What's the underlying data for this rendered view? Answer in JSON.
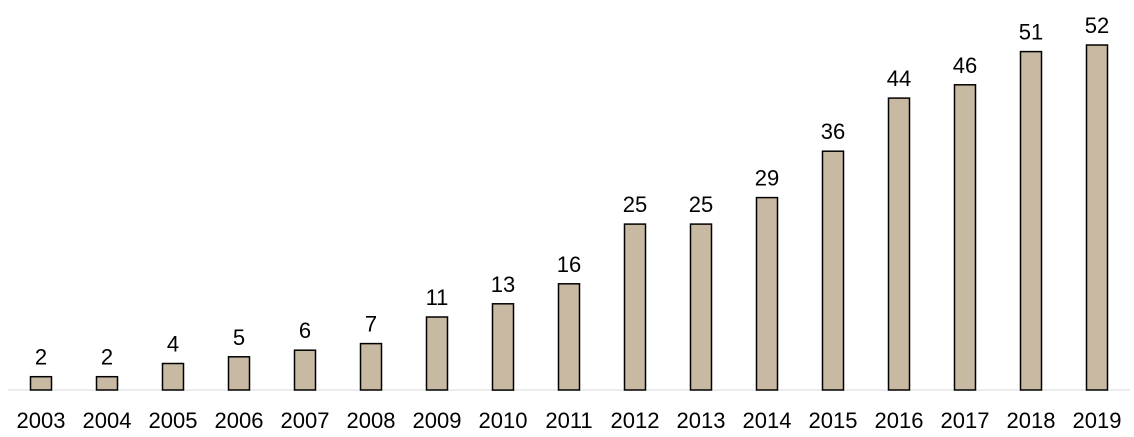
{
  "chart_data": {
    "type": "bar",
    "title": "",
    "xlabel": "",
    "ylabel": "",
    "categories": [
      "2003",
      "2004",
      "2005",
      "2006",
      "2007",
      "2008",
      "2009",
      "2010",
      "2011",
      "2012",
      "2013",
      "2014",
      "2015",
      "2016",
      "2017",
      "2018",
      "2019"
    ],
    "values": [
      2,
      2,
      4,
      5,
      6,
      7,
      11,
      13,
      16,
      25,
      25,
      29,
      36,
      44,
      46,
      51,
      52
    ],
    "ylim": [
      0,
      52
    ],
    "grid": false,
    "legend": "none",
    "data_labels": true,
    "colors": {
      "bar_fill": "#c8b9a3",
      "bar_stroke": "#000000",
      "axis": "#d9d9d9",
      "text": "#000000"
    }
  }
}
